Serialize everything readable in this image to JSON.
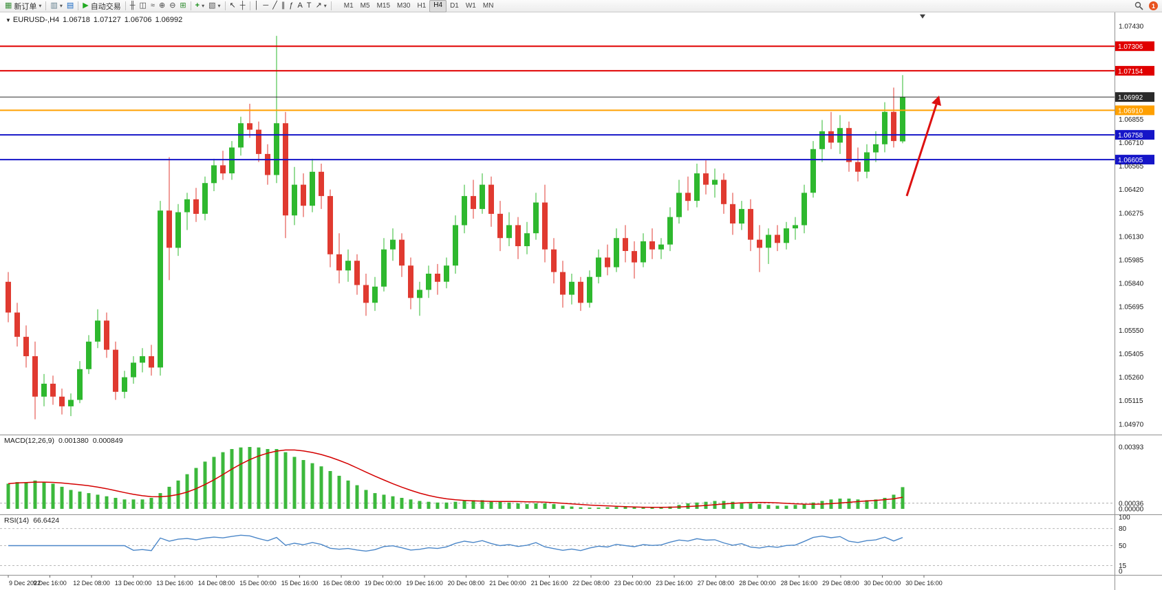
{
  "toolbar": {
    "new_order": "新订单",
    "auto_trading": "自动交易",
    "timeframes": [
      "M1",
      "M5",
      "M15",
      "M30",
      "H1",
      "H4",
      "D1",
      "W1",
      "MN"
    ],
    "active_timeframe": "H4",
    "notification_badge": "1"
  },
  "chart": {
    "symbol": "EURUSD-,H4",
    "ohlc": {
      "open": "1.06718",
      "high": "1.07127",
      "low": "1.06706",
      "close": "1.06992"
    },
    "price_axis_labels": [
      "1.07430",
      "1.06855",
      "1.06710",
      "1.06565",
      "1.06420",
      "1.06275",
      "1.06130",
      "1.05985",
      "1.05840",
      "1.05695",
      "1.05550",
      "1.05405",
      "1.05260",
      "1.05115",
      "1.04970"
    ],
    "levels": [
      {
        "label": "1.07306",
        "price": 1.07306,
        "color": "#e00000",
        "width": 2
      },
      {
        "label": "1.07154",
        "price": 1.07154,
        "color": "#e00000",
        "width": 2
      },
      {
        "label": "1.06992",
        "price": 1.06992,
        "color": "#2b2b2b",
        "width": 1
      },
      {
        "label": "1.06910",
        "price": 1.0691,
        "color": "#ffa000",
        "width": 2
      },
      {
        "label": "1.06758",
        "price": 1.06758,
        "color": "#1515c8",
        "width": 2
      },
      {
        "label": "1.06605",
        "price": 1.06605,
        "color": "#1515c8",
        "width": 2
      }
    ],
    "annotation_arrow": {
      "color": "#dd1111",
      "direction": "up-right"
    },
    "colors": {
      "bull": "#2eb82e",
      "bear": "#e03a30",
      "background": "#ffffff",
      "axis_text": "#1a1a1a"
    }
  },
  "macd": {
    "title": "MACD(12,26,9)",
    "value_main": "0.001380",
    "value_signal": "0.000849",
    "axis_labels": [
      "0.00393",
      "0.00036",
      "0.00000"
    ],
    "colors": {
      "histogram": "#3cb83c",
      "signal": "#d40000"
    }
  },
  "rsi": {
    "title": "RSI(14)",
    "value": "66.6424",
    "axis_labels": [
      "100",
      "80",
      "50",
      "15",
      "0"
    ],
    "level_lines": [
      80,
      50,
      15
    ],
    "color": "#4a86c8"
  },
  "time_axis": {
    "labels": [
      "9 Dec 2022",
      "9 Dec 16:00",
      "12 Dec 08:00",
      "13 Dec 00:00",
      "13 Dec 16:00",
      "14 Dec 08:00",
      "15 Dec 00:00",
      "15 Dec 16:00",
      "16 Dec 08:00",
      "19 Dec 00:00",
      "19 Dec 16:00",
      "20 Dec 08:00",
      "21 Dec 00:00",
      "21 Dec 16:00",
      "22 Dec 08:00",
      "23 Dec 00:00",
      "23 Dec 16:00",
      "27 Dec 08:00",
      "28 Dec 00:00",
      "28 Dec 16:00",
      "29 Dec 08:00",
      "30 Dec 00:00",
      "30 Dec 16:00"
    ]
  },
  "chart_data": {
    "type": "candlestick",
    "symbol": "EURUSD",
    "timeframe": "H4",
    "ylim": [
      1.0497,
      1.0743
    ],
    "ohlc_format": [
      "open",
      "high",
      "low",
      "close"
    ],
    "candles": [
      [
        1.0585,
        1.0591,
        1.056,
        1.0566
      ],
      [
        1.0566,
        1.0572,
        1.0545,
        1.0551
      ],
      [
        1.0551,
        1.0558,
        1.0532,
        1.0539
      ],
      [
        1.0539,
        1.0548,
        1.05,
        1.0514
      ],
      [
        1.0514,
        1.0528,
        1.0508,
        1.0522
      ],
      [
        1.0522,
        1.0527,
        1.0509,
        1.0514
      ],
      [
        1.0514,
        1.0519,
        1.0503,
        1.0508
      ],
      [
        1.0508,
        1.0516,
        1.0502,
        1.0512
      ],
      [
        1.0512,
        1.0536,
        1.051,
        1.0531
      ],
      [
        1.0531,
        1.0552,
        1.0528,
        1.0548
      ],
      [
        1.0548,
        1.0568,
        1.0544,
        1.0561
      ],
      [
        1.0561,
        1.0566,
        1.0538,
        1.0543
      ],
      [
        1.0543,
        1.0548,
        1.0512,
        1.0517
      ],
      [
        1.0517,
        1.053,
        1.0513,
        1.0526
      ],
      [
        1.0526,
        1.0539,
        1.0522,
        1.0535
      ],
      [
        1.0535,
        1.0544,
        1.0529,
        1.0539
      ],
      [
        1.0539,
        1.0546,
        1.0527,
        1.0532
      ],
      [
        1.0532,
        1.0635,
        1.0527,
        1.0629
      ],
      [
        1.0629,
        1.0662,
        1.0586,
        1.0606
      ],
      [
        1.0606,
        1.0633,
        1.0601,
        1.0628
      ],
      [
        1.0628,
        1.064,
        1.0617,
        1.0636
      ],
      [
        1.0636,
        1.0643,
        1.0622,
        1.0627
      ],
      [
        1.0627,
        1.065,
        1.0623,
        1.0646
      ],
      [
        1.0646,
        1.0661,
        1.0641,
        1.0657
      ],
      [
        1.0657,
        1.0666,
        1.0648,
        1.0652
      ],
      [
        1.0652,
        1.0672,
        1.0648,
        1.0668
      ],
      [
        1.0668,
        1.0687,
        1.0663,
        1.0683
      ],
      [
        1.0683,
        1.0695,
        1.0674,
        1.0679
      ],
      [
        1.0679,
        1.0684,
        1.0659,
        1.0664
      ],
      [
        1.0664,
        1.067,
        1.0645,
        1.0651
      ],
      [
        1.0651,
        1.0737,
        1.0646,
        1.0683
      ],
      [
        1.0683,
        1.069,
        1.0612,
        1.0626
      ],
      [
        1.0626,
        1.0656,
        1.062,
        1.0645
      ],
      [
        1.0645,
        1.0652,
        1.0625,
        1.0632
      ],
      [
        1.0632,
        1.0661,
        1.0628,
        1.0653
      ],
      [
        1.0653,
        1.0658,
        1.063,
        1.0638
      ],
      [
        1.0638,
        1.0642,
        1.0594,
        1.0602
      ],
      [
        1.0602,
        1.0615,
        1.0584,
        1.0592
      ],
      [
        1.0592,
        1.0605,
        1.0585,
        1.0598
      ],
      [
        1.0598,
        1.0602,
        1.0577,
        1.0583
      ],
      [
        1.0583,
        1.059,
        1.0564,
        1.0572
      ],
      [
        1.0572,
        1.0588,
        1.0567,
        1.0582
      ],
      [
        1.0582,
        1.0612,
        1.0579,
        1.0605
      ],
      [
        1.0605,
        1.0618,
        1.0598,
        1.0611
      ],
      [
        1.0611,
        1.0615,
        1.0588,
        1.0595
      ],
      [
        1.0595,
        1.06,
        1.0568,
        1.0575
      ],
      [
        1.0575,
        1.0585,
        1.0564,
        1.058
      ],
      [
        1.058,
        1.0595,
        1.0575,
        1.059
      ],
      [
        1.059,
        1.0596,
        1.0577,
        1.0585
      ],
      [
        1.0585,
        1.06,
        1.0581,
        1.0595
      ],
      [
        1.0595,
        1.0626,
        1.059,
        1.062
      ],
      [
        1.062,
        1.0645,
        1.0615,
        1.0638
      ],
      [
        1.0638,
        1.0648,
        1.0624,
        1.063
      ],
      [
        1.063,
        1.0652,
        1.0627,
        1.0645
      ],
      [
        1.0645,
        1.065,
        1.0619,
        1.0627
      ],
      [
        1.0627,
        1.0635,
        1.0604,
        1.0612
      ],
      [
        1.0612,
        1.0628,
        1.0607,
        1.062
      ],
      [
        1.062,
        1.0625,
        1.0599,
        1.0607
      ],
      [
        1.0607,
        1.0622,
        1.0602,
        1.0615
      ],
      [
        1.0615,
        1.064,
        1.0611,
        1.0634
      ],
      [
        1.0634,
        1.0645,
        1.0597,
        1.0605
      ],
      [
        1.0605,
        1.0612,
        1.0584,
        1.0591
      ],
      [
        1.0591,
        1.0598,
        1.0569,
        1.0577
      ],
      [
        1.0577,
        1.059,
        1.0571,
        1.0585
      ],
      [
        1.0585,
        1.0588,
        1.0567,
        1.0572
      ],
      [
        1.0572,
        1.0592,
        1.0569,
        1.0588
      ],
      [
        1.0588,
        1.0605,
        1.0584,
        1.06
      ],
      [
        1.06,
        1.0608,
        1.0589,
        1.0594
      ],
      [
        1.0594,
        1.0618,
        1.0591,
        1.0612
      ],
      [
        1.0612,
        1.062,
        1.0597,
        1.0604
      ],
      [
        1.0604,
        1.061,
        1.0587,
        1.0597
      ],
      [
        1.0597,
        1.0615,
        1.0594,
        1.061
      ],
      [
        1.061,
        1.0618,
        1.0599,
        1.0605
      ],
      [
        1.0605,
        1.0612,
        1.0599,
        1.0608
      ],
      [
        1.0608,
        1.0631,
        1.0604,
        1.0625
      ],
      [
        1.0625,
        1.0648,
        1.0621,
        1.064
      ],
      [
        1.064,
        1.065,
        1.0629,
        1.0635
      ],
      [
        1.0635,
        1.0658,
        1.0631,
        1.0652
      ],
      [
        1.0652,
        1.066,
        1.0639,
        1.0645
      ],
      [
        1.0645,
        1.0655,
        1.0637,
        1.0648
      ],
      [
        1.0648,
        1.0652,
        1.0627,
        1.0633
      ],
      [
        1.0633,
        1.064,
        1.0614,
        1.0621
      ],
      [
        1.0621,
        1.0635,
        1.0617,
        1.063
      ],
      [
        1.063,
        1.0636,
        1.0604,
        1.0611
      ],
      [
        1.0611,
        1.062,
        1.0591,
        1.0606
      ],
      [
        1.0606,
        1.0618,
        1.0596,
        1.0614
      ],
      [
        1.0614,
        1.062,
        1.0604,
        1.0609
      ],
      [
        1.0609,
        1.0622,
        1.0605,
        1.0618
      ],
      [
        1.0618,
        1.0625,
        1.0611,
        1.062
      ],
      [
        1.062,
        1.0645,
        1.0615,
        1.064
      ],
      [
        1.064,
        1.0672,
        1.0637,
        1.0667
      ],
      [
        1.0667,
        1.0685,
        1.0659,
        1.0678
      ],
      [
        1.0678,
        1.069,
        1.0667,
        1.0671
      ],
      [
        1.0671,
        1.0688,
        1.0664,
        1.068
      ],
      [
        1.068,
        1.0684,
        1.0653,
        1.0659
      ],
      [
        1.0659,
        1.0668,
        1.0647,
        1.0653
      ],
      [
        1.0653,
        1.067,
        1.0649,
        1.0665
      ],
      [
        1.0665,
        1.0678,
        1.0659,
        1.067
      ],
      [
        1.067,
        1.0696,
        1.0665,
        1.069
      ],
      [
        1.069,
        1.0705,
        1.0668,
        1.0672
      ],
      [
        1.06718,
        1.07127,
        1.06706,
        1.06992
      ]
    ],
    "macd_histogram": [
      0.0016,
      0.0017,
      0.0017,
      0.0018,
      0.0017,
      0.0016,
      0.0014,
      0.0012,
      0.0011,
      0.001,
      0.0009,
      0.0008,
      0.0007,
      0.0006,
      0.0006,
      0.0006,
      0.0007,
      0.001,
      0.0014,
      0.0018,
      0.0022,
      0.0026,
      0.003,
      0.0033,
      0.0036,
      0.0038,
      0.0039,
      0.00393,
      0.0039,
      0.0038,
      0.0038,
      0.0036,
      0.0033,
      0.0031,
      0.0029,
      0.0027,
      0.0024,
      0.0021,
      0.0018,
      0.0015,
      0.0012,
      0.001,
      0.0009,
      0.0008,
      0.0007,
      0.0006,
      0.0005,
      0.00045,
      0.0004,
      0.0004,
      0.00045,
      0.0005,
      0.00055,
      0.00055,
      0.0005,
      0.00045,
      0.0004,
      0.00035,
      0.0003,
      0.00035,
      0.00035,
      0.0003,
      0.0002,
      0.00015,
      0.0001,
      8e-05,
      8e-05,
      0.0001,
      0.00012,
      0.00012,
      0.0001,
      8e-05,
      8e-05,
      0.0001,
      0.00015,
      0.00025,
      0.00035,
      0.0004,
      0.00045,
      0.0005,
      0.0005,
      0.00045,
      0.0004,
      0.00035,
      0.0003,
      0.00025,
      0.0002,
      0.0002,
      0.00025,
      0.0003,
      0.0004,
      0.0005,
      0.0006,
      0.00065,
      0.00065,
      0.0006,
      0.00055,
      0.0006,
      0.0007,
      0.0009,
      0.00138
    ],
    "macd_current": {
      "main": 0.00138,
      "signal": 0.000849
    },
    "rsi_current": 66.6424
  }
}
